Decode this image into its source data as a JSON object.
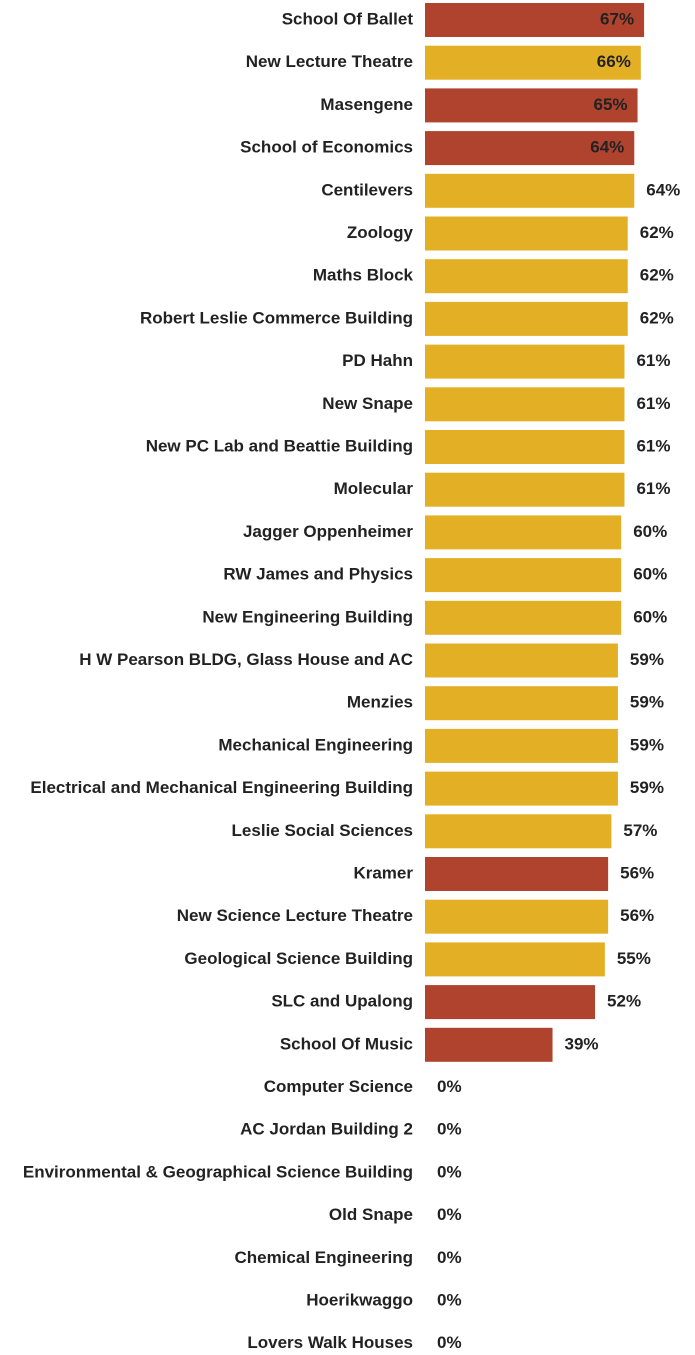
{
  "chart_data": {
    "type": "bar",
    "orientation": "horizontal",
    "categories": [
      "School Of Ballet",
      "New Lecture Theatre",
      "Masengene",
      "School of Economics",
      "Centilevers",
      "Zoology",
      "Maths Block",
      "Robert Leslie Commerce Building",
      "PD Hahn",
      "New Snape",
      "New PC Lab and Beattie Building",
      "Molecular",
      "Jagger Oppenheimer",
      "RW James and Physics",
      "New Engineering Building",
      "H W Pearson BLDG, Glass House and AC",
      "Menzies",
      "Mechanical Engineering",
      "Electrical and Mechanical Engineering Building",
      "Leslie Social Sciences",
      "Kramer",
      "New Science Lecture Theatre",
      "Geological Science Building",
      "SLC and Upalong",
      "School Of Music",
      "Computer Science",
      "AC Jordan Building 2",
      "Environmental & Geographical Science Building",
      "Old Snape",
      "Chemical Engineering",
      "Hoerikwaggo",
      "Lovers Walk Houses"
    ],
    "values": [
      67,
      66,
      65,
      64,
      64,
      62,
      62,
      62,
      61,
      61,
      61,
      61,
      60,
      60,
      60,
      59,
      59,
      59,
      59,
      57,
      56,
      56,
      55,
      52,
      39,
      0,
      0,
      0,
      0,
      0,
      0,
      0
    ],
    "value_labels": [
      "67%",
      "66%",
      "65%",
      "64%",
      "64%",
      "62%",
      "62%",
      "62%",
      "61%",
      "61%",
      "61%",
      "61%",
      "60%",
      "60%",
      "60%",
      "59%",
      "59%",
      "59%",
      "59%",
      "57%",
      "56%",
      "56%",
      "55%",
      "52%",
      "39%",
      "0%",
      "0%",
      "0%",
      "0%",
      "0%",
      "0%",
      "0%"
    ],
    "colors": [
      "#b0432e",
      "#e3b025",
      "#b0432e",
      "#b0432e",
      "#e3b025",
      "#e3b025",
      "#e3b025",
      "#e3b025",
      "#e3b025",
      "#e3b025",
      "#e3b025",
      "#e3b025",
      "#e3b025",
      "#e3b025",
      "#e3b025",
      "#e3b025",
      "#e3b025",
      "#e3b025",
      "#e3b025",
      "#e3b025",
      "#b0432e",
      "#e3b025",
      "#e3b025",
      "#b0432e",
      "#b0432e",
      "#e3b025",
      "#e3b025",
      "#e3b025",
      "#e3b025",
      "#e3b025",
      "#e3b025",
      "#e3b025"
    ],
    "value_label_position": [
      "inside",
      "inside",
      "inside",
      "inside",
      "outside",
      "outside",
      "outside",
      "outside",
      "outside",
      "outside",
      "outside",
      "outside",
      "outside",
      "outside",
      "outside",
      "outside",
      "outside",
      "outside",
      "outside",
      "outside",
      "outside",
      "outside",
      "outside",
      "outside",
      "outside",
      "outside",
      "outside",
      "outside",
      "outside",
      "outside",
      "outside",
      "outside"
    ]
  }
}
